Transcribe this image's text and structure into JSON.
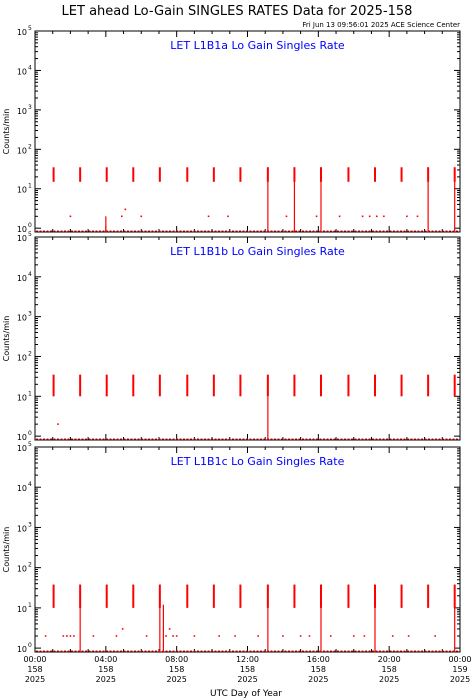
{
  "title": "LET ahead Lo-Gain SINGLES RATES Data for 2025-158",
  "timestamp": "Fri Jun 13 09:56:01 2025 ACE Science Center",
  "xlabel": "UTC Day of Year",
  "ylabel": "Counts/min",
  "colors": {
    "data": "#ff0000",
    "panel_title": "#0000ff",
    "axes": "#000000"
  },
  "x_ticks": [
    {
      "hour": 0,
      "time": "00:00",
      "day": "158",
      "year": "2025"
    },
    {
      "hour": 4,
      "time": "04:00",
      "day": "158",
      "year": "2025"
    },
    {
      "hour": 8,
      "time": "08:00",
      "day": "158",
      "year": "2025"
    },
    {
      "hour": 12,
      "time": "12:00",
      "day": "158",
      "year": "2025"
    },
    {
      "hour": 16,
      "time": "16:00",
      "day": "158",
      "year": "2025"
    },
    {
      "hour": 20,
      "time": "20:00",
      "day": "158",
      "year": "2025"
    },
    {
      "hour": 24,
      "time": "00:00",
      "day": "159",
      "year": "2025"
    }
  ],
  "y_ticks": [
    {
      "exp": 0,
      "label": "10",
      "sup": "0"
    },
    {
      "exp": 1,
      "label": "10",
      "sup": "1"
    },
    {
      "exp": 2,
      "label": "10",
      "sup": "2"
    },
    {
      "exp": 3,
      "label": "10",
      "sup": "3"
    },
    {
      "exp": 4,
      "label": "10",
      "sup": "4"
    },
    {
      "exp": 5,
      "label": "10",
      "sup": "5"
    }
  ],
  "chart_data": [
    {
      "type": "scatter",
      "title": "LET L1B1a Lo Gain Singles Rate",
      "y_scale": "log",
      "ylim": [
        0.8,
        100000
      ],
      "xlim": [
        0,
        24
      ],
      "x_unit": "hours UTC, day 158 of 2025",
      "baseline": 0.8,
      "spikes": [
        {
          "x": 1.05,
          "low": 15,
          "high": 35
        },
        {
          "x": 2.55,
          "low": 15,
          "high": 35
        },
        {
          "x": 4.05,
          "low": 15,
          "high": 35
        },
        {
          "x": 5.55,
          "low": 15,
          "high": 35
        },
        {
          "x": 7.05,
          "low": 15,
          "high": 35
        },
        {
          "x": 8.6,
          "low": 15,
          "high": 35
        },
        {
          "x": 10.1,
          "low": 15,
          "high": 35
        },
        {
          "x": 11.6,
          "low": 15,
          "high": 35
        },
        {
          "x": 13.15,
          "low": 15,
          "high": 35
        },
        {
          "x": 14.65,
          "low": 15,
          "high": 35
        },
        {
          "x": 16.15,
          "low": 15,
          "high": 35
        },
        {
          "x": 17.7,
          "low": 15,
          "high": 35
        },
        {
          "x": 19.2,
          "low": 15,
          "high": 35
        },
        {
          "x": 20.7,
          "low": 15,
          "high": 35
        },
        {
          "x": 22.2,
          "low": 15,
          "high": 35
        },
        {
          "x": 23.7,
          "low": 15,
          "high": 35
        }
      ],
      "drops": [
        {
          "x": 13.15,
          "high": 35
        },
        {
          "x": 14.65,
          "high": 35
        },
        {
          "x": 16.15,
          "high": 35
        },
        {
          "x": 22.2,
          "high": 35
        },
        {
          "x": 23.7,
          "high": 35
        },
        {
          "x": 4.0,
          "high": 2
        }
      ],
      "points": [
        {
          "x": 2.0,
          "y": 2
        },
        {
          "x": 4.9,
          "y": 2
        },
        {
          "x": 5.1,
          "y": 3
        },
        {
          "x": 6.0,
          "y": 2
        },
        {
          "x": 9.8,
          "y": 2
        },
        {
          "x": 10.9,
          "y": 2
        },
        {
          "x": 15.9,
          "y": 2
        },
        {
          "x": 17.2,
          "y": 2
        },
        {
          "x": 18.5,
          "y": 2
        },
        {
          "x": 18.9,
          "y": 2
        },
        {
          "x": 19.3,
          "y": 2
        },
        {
          "x": 19.7,
          "y": 2
        },
        {
          "x": 21.0,
          "y": 2
        },
        {
          "x": 21.6,
          "y": 2
        },
        {
          "x": 14.2,
          "y": 2
        }
      ]
    },
    {
      "type": "scatter",
      "title": "LET L1B1b Lo Gain Singles Rate",
      "y_scale": "log",
      "ylim": [
        0.8,
        100000
      ],
      "xlim": [
        0,
        24
      ],
      "x_unit": "hours UTC, day 158 of 2025",
      "baseline": 0.8,
      "spikes": [
        {
          "x": 1.05,
          "low": 10,
          "high": 35
        },
        {
          "x": 2.55,
          "low": 10,
          "high": 35
        },
        {
          "x": 4.05,
          "low": 10,
          "high": 35
        },
        {
          "x": 5.55,
          "low": 10,
          "high": 35
        },
        {
          "x": 7.05,
          "low": 10,
          "high": 35
        },
        {
          "x": 8.6,
          "low": 10,
          "high": 35
        },
        {
          "x": 10.1,
          "low": 10,
          "high": 35
        },
        {
          "x": 11.6,
          "low": 10,
          "high": 35
        },
        {
          "x": 13.15,
          "low": 10,
          "high": 35
        },
        {
          "x": 14.65,
          "low": 10,
          "high": 35
        },
        {
          "x": 16.15,
          "low": 10,
          "high": 35
        },
        {
          "x": 17.7,
          "low": 10,
          "high": 35
        },
        {
          "x": 19.2,
          "low": 10,
          "high": 35
        },
        {
          "x": 20.7,
          "low": 10,
          "high": 35
        },
        {
          "x": 22.2,
          "low": 10,
          "high": 35
        },
        {
          "x": 23.7,
          "low": 10,
          "high": 35
        }
      ],
      "drops": [
        {
          "x": 13.15,
          "high": 10
        }
      ],
      "points": [
        {
          "x": 1.3,
          "y": 2
        }
      ]
    },
    {
      "type": "scatter",
      "title": "LET L1B1c Lo Gain Singles Rate",
      "y_scale": "log",
      "ylim": [
        0.8,
        100000
      ],
      "xlim": [
        0,
        24
      ],
      "x_unit": "hours UTC, day 158 of 2025",
      "baseline": 0.8,
      "spikes": [
        {
          "x": 1.05,
          "low": 10,
          "high": 38
        },
        {
          "x": 2.55,
          "low": 10,
          "high": 38
        },
        {
          "x": 4.05,
          "low": 10,
          "high": 38
        },
        {
          "x": 5.55,
          "low": 10,
          "high": 38
        },
        {
          "x": 7.05,
          "low": 10,
          "high": 38
        },
        {
          "x": 8.6,
          "low": 10,
          "high": 38
        },
        {
          "x": 10.1,
          "low": 10,
          "high": 38
        },
        {
          "x": 11.6,
          "low": 10,
          "high": 38
        },
        {
          "x": 13.15,
          "low": 10,
          "high": 38
        },
        {
          "x": 14.65,
          "low": 10,
          "high": 38
        },
        {
          "x": 16.15,
          "low": 10,
          "high": 38
        },
        {
          "x": 17.7,
          "low": 10,
          "high": 38
        },
        {
          "x": 19.2,
          "low": 10,
          "high": 38
        },
        {
          "x": 20.7,
          "low": 10,
          "high": 38
        },
        {
          "x": 22.2,
          "low": 10,
          "high": 38
        },
        {
          "x": 23.7,
          "low": 10,
          "high": 38
        }
      ],
      "drops": [
        {
          "x": 2.55,
          "high": 38
        },
        {
          "x": 7.05,
          "high": 38
        },
        {
          "x": 7.25,
          "high": 12
        },
        {
          "x": 13.15,
          "high": 38
        },
        {
          "x": 16.15,
          "high": 38
        },
        {
          "x": 19.2,
          "high": 38
        },
        {
          "x": 23.7,
          "high": 38
        }
      ],
      "points": [
        {
          "x": 0.6,
          "y": 2
        },
        {
          "x": 1.6,
          "y": 2
        },
        {
          "x": 1.8,
          "y": 2
        },
        {
          "x": 2.0,
          "y": 2
        },
        {
          "x": 2.2,
          "y": 2
        },
        {
          "x": 3.3,
          "y": 2
        },
        {
          "x": 4.6,
          "y": 2
        },
        {
          "x": 4.95,
          "y": 3
        },
        {
          "x": 6.3,
          "y": 2
        },
        {
          "x": 7.4,
          "y": 2
        },
        {
          "x": 7.6,
          "y": 3
        },
        {
          "x": 7.8,
          "y": 2
        },
        {
          "x": 8.0,
          "y": 2
        },
        {
          "x": 9.0,
          "y": 2
        },
        {
          "x": 10.4,
          "y": 2
        },
        {
          "x": 11.3,
          "y": 2
        },
        {
          "x": 12.6,
          "y": 2
        },
        {
          "x": 14.0,
          "y": 2
        },
        {
          "x": 15.0,
          "y": 2
        },
        {
          "x": 15.5,
          "y": 2
        },
        {
          "x": 16.7,
          "y": 2
        },
        {
          "x": 18.0,
          "y": 2
        },
        {
          "x": 18.6,
          "y": 2
        },
        {
          "x": 20.2,
          "y": 2
        },
        {
          "x": 21.1,
          "y": 2
        },
        {
          "x": 22.6,
          "y": 2
        }
      ]
    }
  ]
}
